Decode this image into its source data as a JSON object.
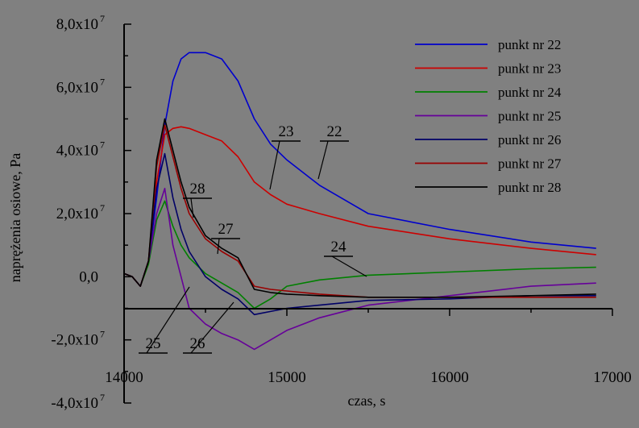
{
  "chart_data": {
    "type": "line",
    "title": "",
    "xlabel": "czas, s",
    "ylabel": "naprężenia osiowe, Pa",
    "xlim": [
      14000,
      17000
    ],
    "ylim": [
      -40000000.0,
      80000000.0
    ],
    "x_ticks": [
      "14000",
      "15000",
      "16000",
      "17000"
    ],
    "y_ticks": [
      {
        "mantissa": "8,0x10",
        "exp": "7",
        "value": 80000000.0
      },
      {
        "mantissa": "6,0x10",
        "exp": "7",
        "value": 60000000.0
      },
      {
        "mantissa": "4,0x10",
        "exp": "7",
        "value": 40000000.0
      },
      {
        "mantissa": "2,0x10",
        "exp": "7",
        "value": 20000000.0
      },
      {
        "mantissa": "0,0",
        "exp": "",
        "value": 0
      },
      {
        "mantissa": "-2,0x10",
        "exp": "7",
        "value": -20000000.0
      },
      {
        "mantissa": "-4,0x10",
        "exp": "7",
        "value": -40000000.0
      }
    ],
    "grid": false,
    "legend_position": "top-right",
    "series": [
      {
        "name": "punkt nr 22",
        "color": "#0000cc",
        "x": [
          14000,
          14050,
          14100,
          14150,
          14200,
          14250,
          14300,
          14350,
          14400,
          14500,
          14600,
          14700,
          14800,
          14900,
          15000,
          15200,
          15500,
          16000,
          16500,
          16900
        ],
        "y": [
          1000000.0,
          0,
          -3000000.0,
          5000000.0,
          25000000.0,
          48000000.0,
          62000000.0,
          69000000.0,
          71000000.0,
          71000000.0,
          69000000.0,
          62000000.0,
          50000000.0,
          42000000.0,
          37000000.0,
          29000000.0,
          20000000.0,
          15000000.0,
          11000000.0,
          9000000.0
        ]
      },
      {
        "name": "punkt nr 23",
        "color": "#cc0000",
        "x": [
          14000,
          14050,
          14100,
          14150,
          14200,
          14250,
          14300,
          14350,
          14400,
          14500,
          14600,
          14700,
          14800,
          14900,
          15000,
          15200,
          15500,
          16000,
          16500,
          16900
        ],
        "y": [
          1000000.0,
          0,
          -3000000.0,
          5000000.0,
          30000000.0,
          45000000.0,
          47000000.0,
          47500000.0,
          47000000.0,
          45000000.0,
          43000000.0,
          38000000.0,
          30000000.0,
          26000000.0,
          23000000.0,
          20000000.0,
          16000000.0,
          12000000.0,
          9000000.0,
          7000000.0
        ]
      },
      {
        "name": "punkt nr 24",
        "color": "#008000",
        "x": [
          14000,
          14050,
          14100,
          14150,
          14200,
          14250,
          14300,
          14350,
          14400,
          14500,
          14600,
          14700,
          14800,
          14900,
          15000,
          15200,
          15500,
          16000,
          16500,
          16900
        ],
        "y": [
          1000000.0,
          0,
          -3000000.0,
          4000000.0,
          18000000.0,
          24000000.0,
          16000000.0,
          10000000.0,
          6000000.0,
          1000000.0,
          -2000000.0,
          -5000000.0,
          -10000000.0,
          -7000000.0,
          -3000000.0,
          -1000000.0,
          500000.0,
          1500000.0,
          2500000.0,
          3000000.0
        ]
      },
      {
        "name": "punkt nr 25",
        "color": "#660099",
        "x": [
          14000,
          14050,
          14100,
          14150,
          14200,
          14250,
          14300,
          14350,
          14400,
          14500,
          14600,
          14700,
          14800,
          14900,
          15000,
          15200,
          15500,
          16000,
          16500,
          16900
        ],
        "y": [
          1000000.0,
          0,
          -3000000.0,
          5000000.0,
          20000000.0,
          28000000.0,
          10000000.0,
          0.0,
          -10000000.0,
          -15000000.0,
          -18000000.0,
          -20000000.0,
          -23000000.0,
          -20000000.0,
          -17000000.0,
          -13000000.0,
          -9000000.0,
          -6000000.0,
          -3000000.0,
          -2000000.0
        ]
      },
      {
        "name": "punkt nr 26",
        "color": "#000066",
        "x": [
          14000,
          14050,
          14100,
          14150,
          14200,
          14250,
          14300,
          14350,
          14400,
          14500,
          14600,
          14700,
          14800,
          14900,
          15000,
          15200,
          15500,
          16000,
          16500,
          16900
        ],
        "y": [
          1000000.0,
          0,
          -3000000.0,
          5000000.0,
          28000000.0,
          39000000.0,
          25000000.0,
          15000000.0,
          8000000.0,
          0.0,
          -4000000.0,
          -7000000.0,
          -12000000.0,
          -11000000.0,
          -10000000.0,
          -9000000.0,
          -7500000.0,
          -7000000.0,
          -6000000.0,
          -6000000.0
        ]
      },
      {
        "name": "punkt nr 27",
        "color": "#990000",
        "x": [
          14000,
          14050,
          14100,
          14150,
          14200,
          14250,
          14300,
          14350,
          14400,
          14500,
          14600,
          14700,
          14800,
          14900,
          15000,
          15200,
          15500,
          16000,
          16500,
          16900
        ],
        "y": [
          1000000.0,
          0,
          -3000000.0,
          5000000.0,
          35000000.0,
          48000000.0,
          38000000.0,
          28000000.0,
          20000000.0,
          12000000.0,
          8000000.0,
          5000000.0,
          -3000000.0,
          -4000000.0,
          -4500000.0,
          -5500000.0,
          -6500000.0,
          -6500000.0,
          -6500000.0,
          -6500000.0
        ]
      },
      {
        "name": "punkt nr 28",
        "color": "#000000",
        "x": [
          14000,
          14050,
          14100,
          14150,
          14200,
          14250,
          14300,
          14350,
          14400,
          14500,
          14600,
          14700,
          14800,
          14900,
          15000,
          15200,
          15500,
          16000,
          16500,
          16900
        ],
        "y": [
          1000000.0,
          0,
          -3000000.0,
          5000000.0,
          37000000.0,
          50000000.0,
          40000000.0,
          30000000.0,
          22000000.0,
          13000000.0,
          9000000.0,
          6000000.0,
          -4000000.0,
          -5000000.0,
          -5500000.0,
          -6000000.0,
          -6500000.0,
          -6500000.0,
          -6000000.0,
          -5500000.0
        ]
      }
    ],
    "annotations": [
      {
        "label": "22",
        "series": "punkt nr 22"
      },
      {
        "label": "23",
        "series": "punkt nr 23"
      },
      {
        "label": "24",
        "series": "punkt nr 24"
      },
      {
        "label": "25",
        "series": "punkt nr 25"
      },
      {
        "label": "26",
        "series": "punkt nr 26"
      },
      {
        "label": "27",
        "series": "punkt nr 27"
      },
      {
        "label": "28",
        "series": "punkt nr 28"
      }
    ]
  }
}
